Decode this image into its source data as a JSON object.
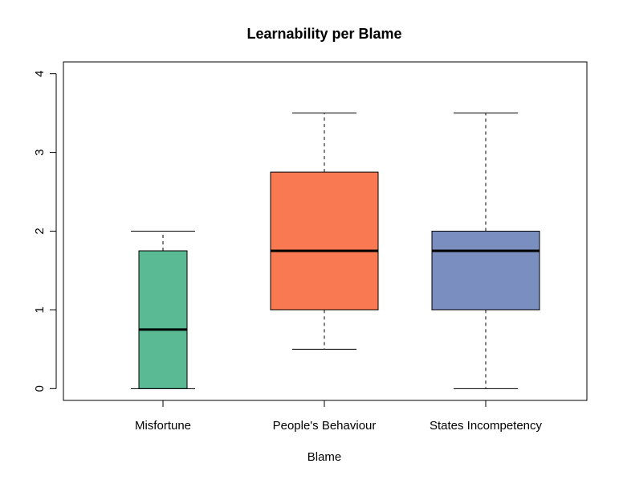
{
  "chart_data": {
    "type": "box",
    "title": "Learnability per Blame",
    "xlabel": "Blame",
    "ylabel": "",
    "ylim": [
      -0.15,
      4.15
    ],
    "yticks": [
      "0",
      "1",
      "2",
      "3",
      "4"
    ],
    "grid": false,
    "legend": "none",
    "categories": [
      "Misfortune",
      "People's Behaviour",
      "States Incompetency"
    ],
    "boxes": [
      {
        "category": "Misfortune",
        "whisker_low": 0,
        "q1": 0,
        "median": 0.75,
        "q3": 1.75,
        "whisker_high": 2,
        "color": "#59BA93"
      },
      {
        "category": "People's Behaviour",
        "whisker_low": 0.5,
        "q1": 1,
        "median": 1.75,
        "q3": 2.75,
        "whisker_high": 3.5,
        "color": "#F97A52"
      },
      {
        "category": "States Incompetency",
        "whisker_low": 0,
        "q1": 1,
        "median": 1.75,
        "q3": 2,
        "whisker_high": 3.5,
        "color": "#7B8EC0"
      }
    ]
  }
}
